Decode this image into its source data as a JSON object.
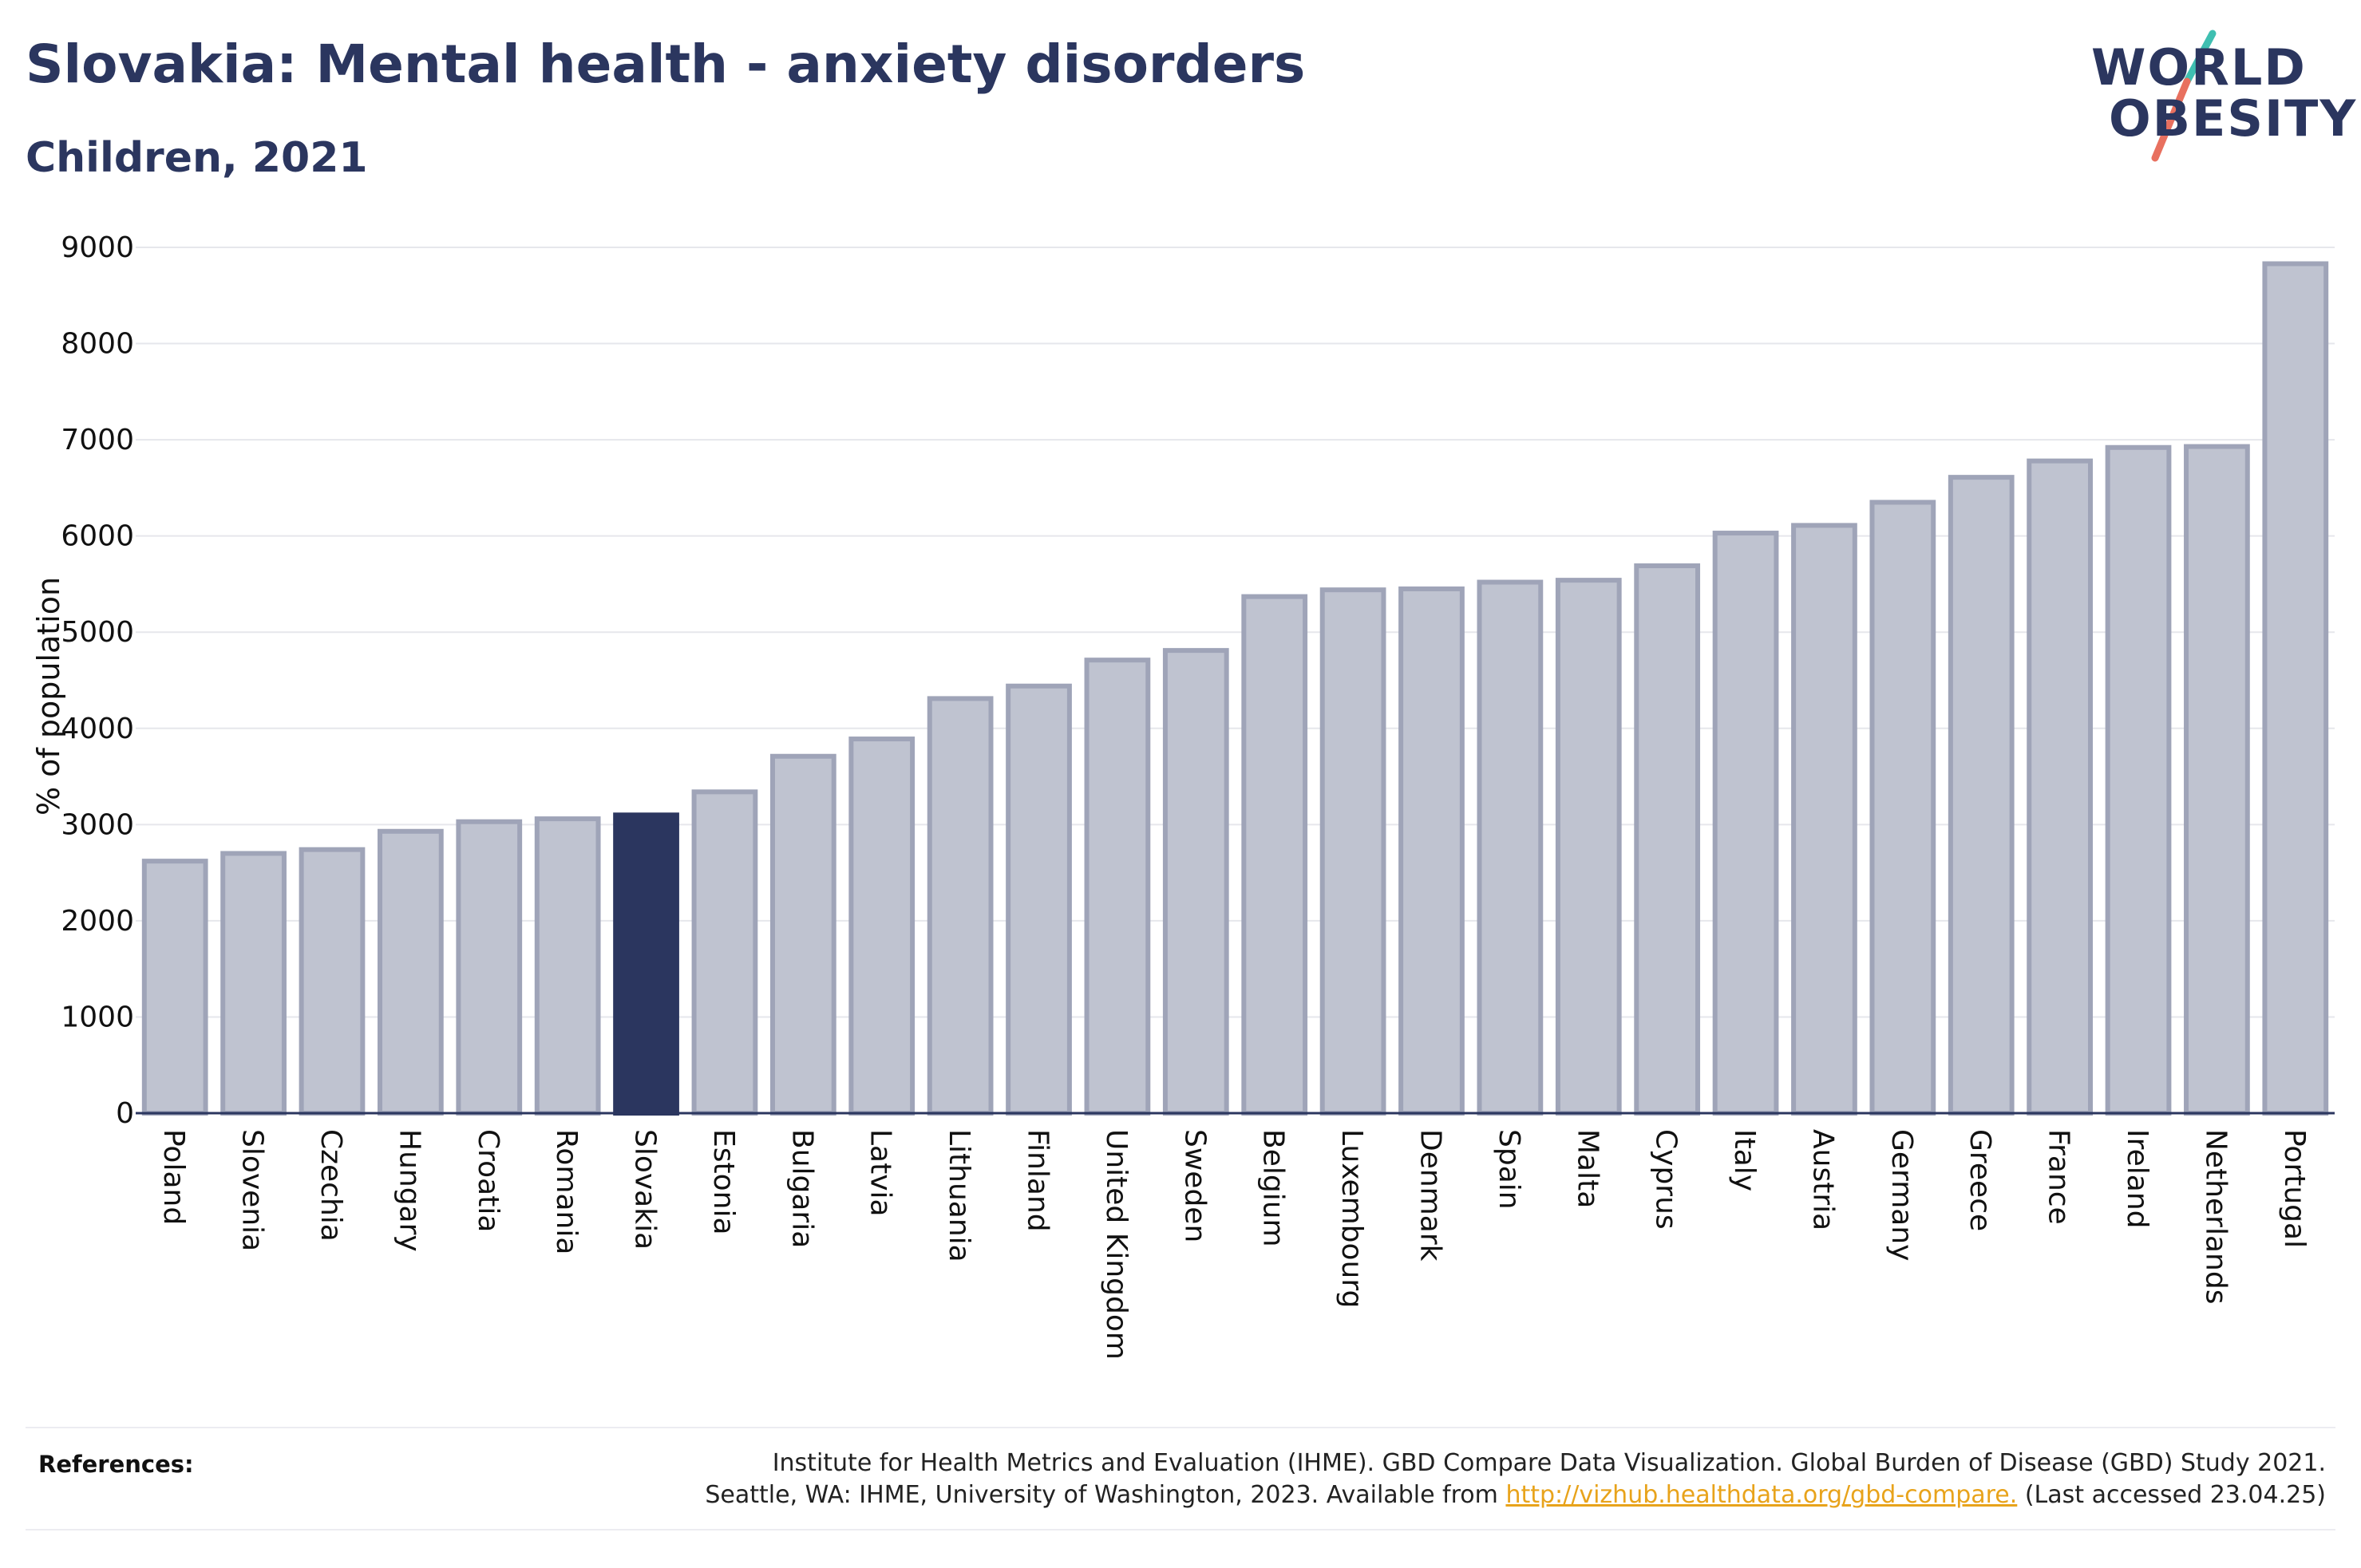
{
  "header": {
    "title": "Slovakia: Mental health - anxiety disorders",
    "subtitle": "Children, 2021"
  },
  "logo": {
    "line1": "WORLD",
    "line2": "OBESITY",
    "colors": {
      "text": "#2b365f",
      "slash_top": "#3fbfb1",
      "slash_bottom": "#e8705f"
    }
  },
  "colors": {
    "bar_fill": "#bfc3d0",
    "bar_stroke": "#9fa4b8",
    "highlight_fill": "#2b365f",
    "grid": "#e6e7ec",
    "axis": "#2b365f"
  },
  "chart_data": {
    "type": "bar",
    "ylabel": "% of population",
    "ylim": [
      0,
      9000
    ],
    "yticks": [
      0,
      1000,
      2000,
      3000,
      4000,
      5000,
      6000,
      7000,
      8000,
      9000
    ],
    "grid": true,
    "highlight": "Slovakia",
    "categories": [
      "Poland",
      "Slovenia",
      "Czechia",
      "Hungary",
      "Croatia",
      "Romania",
      "Slovakia",
      "Estonia",
      "Bulgaria",
      "Latvia",
      "Lithuania",
      "Finland",
      "United Kingdom",
      "Sweden",
      "Belgium",
      "Luxembourg",
      "Denmark",
      "Spain",
      "Malta",
      "Cyprus",
      "Italy",
      "Austria",
      "Germany",
      "Greece",
      "France",
      "Ireland",
      "Netherlands",
      "Portugal"
    ],
    "values": [
      2620,
      2700,
      2740,
      2930,
      3030,
      3060,
      3100,
      3340,
      3710,
      3890,
      4310,
      4440,
      4710,
      4810,
      5370,
      5440,
      5450,
      5520,
      5540,
      5690,
      6030,
      6110,
      6350,
      6610,
      6780,
      6920,
      6930,
      8830
    ]
  },
  "references": {
    "label": "References:",
    "line1": "Institute for Health Metrics and Evaluation (IHME). GBD Compare Data Visualization. Global Burden of Disease (GBD) Study 2021.",
    "line2_pre": "Seattle, WA: IHME, University of Washington, 2023. Available from",
    "link": "http://vizhub.healthdata.org/gbd-compare.",
    "line2_post": "(Last accessed 23.04.25)"
  }
}
